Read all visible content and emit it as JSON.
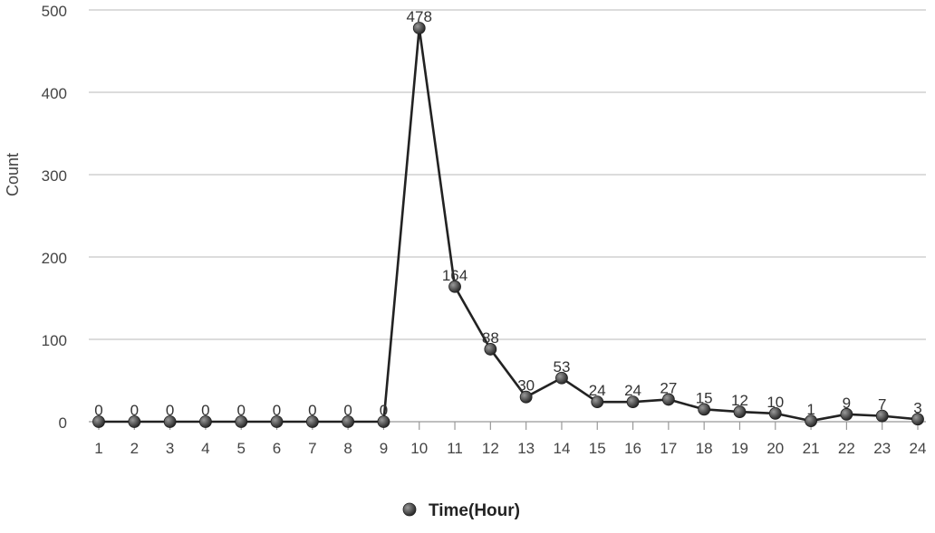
{
  "chart_data": {
    "type": "line",
    "title": "",
    "xlabel": "",
    "ylabel": "Count",
    "categories": [
      "1",
      "2",
      "3",
      "4",
      "5",
      "6",
      "7",
      "8",
      "9",
      "10",
      "11",
      "12",
      "13",
      "14",
      "15",
      "16",
      "17",
      "18",
      "19",
      "20",
      "21",
      "22",
      "23",
      "24"
    ],
    "series": [
      {
        "name": "Time(Hour)",
        "values": [
          0,
          0,
          0,
          0,
          0,
          0,
          0,
          0,
          0,
          478,
          164,
          88,
          30,
          53,
          24,
          24,
          27,
          15,
          12,
          10,
          1,
          9,
          7,
          3
        ]
      }
    ],
    "ylim": [
      0,
      500
    ],
    "yticks": [
      0,
      100,
      200,
      300,
      400,
      500
    ],
    "grid": true,
    "legend_position": "bottom",
    "colors": {
      "line": "#222222",
      "marker": "#3a3a3a",
      "grid": "#c8c8c8",
      "axis": "#999999"
    }
  }
}
